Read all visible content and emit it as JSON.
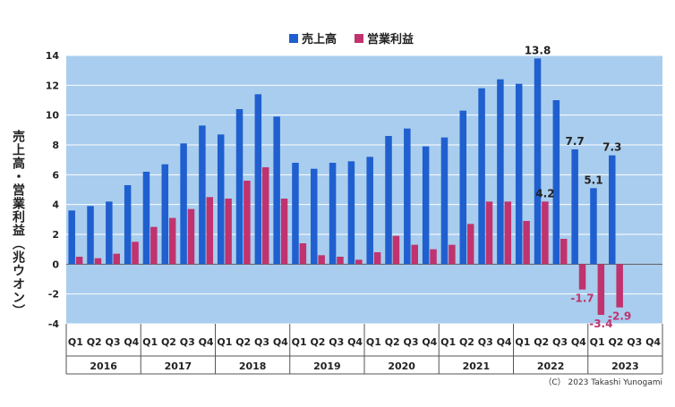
{
  "chart_data": {
    "type": "bar",
    "legend": [
      "売上高",
      "営業利益"
    ],
    "legend_position": "top-center",
    "ylabel": "売上高・営業利益（兆ウオン）",
    "ylim": [
      -4,
      14
    ],
    "yticks": [
      "14",
      "12",
      "10",
      "8",
      "6",
      "4",
      "2",
      "0",
      "-2",
      "-4"
    ],
    "grid": true,
    "quarter_labels": [
      "Q1",
      "Q2",
      "Q3",
      "Q4",
      "Q1",
      "Q2",
      "Q3",
      "Q4",
      "Q1",
      "Q2",
      "Q3",
      "Q4",
      "Q1",
      "Q2",
      "Q3",
      "Q4",
      "Q1",
      "Q2",
      "Q3",
      "Q4",
      "Q1",
      "Q2",
      "Q3",
      "Q4",
      "Q1",
      "Q2",
      "Q3",
      "Q4",
      "Q1",
      "Q2",
      "Q3",
      "Q4"
    ],
    "years": [
      "2016",
      "2017",
      "2018",
      "2019",
      "2020",
      "2021",
      "2022",
      "2023"
    ],
    "series": [
      {
        "name": "売上高",
        "color": "#1f5fcf",
        "values": [
          3.6,
          3.9,
          4.2,
          5.3,
          6.2,
          6.7,
          8.1,
          9.3,
          8.7,
          10.4,
          11.4,
          9.9,
          6.8,
          6.4,
          6.8,
          6.9,
          7.2,
          8.6,
          9.1,
          7.9,
          8.5,
          10.3,
          11.8,
          12.4,
          12.1,
          13.8,
          11.0,
          7.7,
          5.1,
          7.3,
          null,
          null
        ]
      },
      {
        "name": "営業利益",
        "color": "#c0336e",
        "values": [
          0.5,
          0.4,
          0.7,
          1.5,
          2.5,
          3.1,
          3.7,
          4.5,
          4.4,
          5.6,
          6.5,
          4.4,
          1.4,
          0.6,
          0.5,
          0.3,
          0.8,
          1.9,
          1.3,
          1.0,
          1.3,
          2.7,
          4.2,
          4.2,
          2.9,
          4.2,
          1.7,
          -1.7,
          -3.4,
          -2.9,
          null,
          null
        ]
      }
    ],
    "data_labels": [
      {
        "series": 0,
        "index": 25,
        "text": "13.8"
      },
      {
        "series": 0,
        "index": 27,
        "text": "7.7"
      },
      {
        "series": 0,
        "index": 28,
        "text": "5.1"
      },
      {
        "series": 0,
        "index": 29,
        "text": "7.3"
      },
      {
        "series": 1,
        "index": 25,
        "text": "4.2"
      },
      {
        "series": 1,
        "index": 27,
        "text": "-1.7"
      },
      {
        "series": 1,
        "index": 28,
        "text": "-3.4"
      },
      {
        "series": 1,
        "index": 29,
        "text": "-2.9"
      }
    ],
    "colors": {
      "plot_background": "#a9cdee",
      "grid": "#ffffff",
      "label_negative": "#c0336e"
    }
  },
  "copyright": "（C） 2023 Takashi Yunogami"
}
